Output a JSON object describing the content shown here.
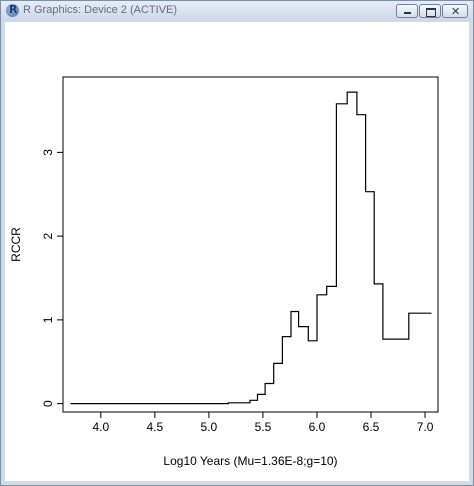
{
  "window": {
    "title": "R Graphics: Device 2 (ACTIVE)",
    "buttons": {
      "minimize": "minimize-icon",
      "maximize": "maximize-icon",
      "close": "close-icon"
    }
  },
  "chart_data": {
    "type": "line",
    "style": "step",
    "title": "",
    "xlabel": "Log10 Years (Mu=1.36E-8;g=10)",
    "ylabel": "RCCR",
    "xlim": [
      3.65,
      7.12
    ],
    "ylim": [
      -0.1,
      3.9
    ],
    "xticks": [
      4.0,
      4.5,
      5.0,
      5.5,
      6.0,
      6.5,
      7.0
    ],
    "xtick_labels": [
      "4.0",
      "4.5",
      "5.0",
      "5.5",
      "6.0",
      "6.5",
      "7.0"
    ],
    "yticks": [
      0,
      1,
      2,
      3
    ],
    "ytick_labels": [
      "0",
      "1",
      "2",
      "3"
    ],
    "grid": false,
    "series": [
      {
        "x": [
          3.72,
          5.18,
          5.38,
          5.45,
          5.52,
          5.6,
          5.68,
          5.76,
          5.83,
          5.92,
          6.0,
          6.09,
          6.18,
          6.28,
          6.37,
          6.45,
          6.53,
          6.61,
          6.7,
          6.85,
          7.06
        ],
        "y": [
          0.0,
          0.01,
          0.04,
          0.11,
          0.24,
          0.48,
          0.8,
          1.1,
          0.92,
          0.75,
          1.3,
          1.4,
          3.58,
          3.72,
          3.45,
          2.53,
          1.43,
          0.77,
          0.77,
          1.08,
          1.08
        ]
      }
    ]
  }
}
